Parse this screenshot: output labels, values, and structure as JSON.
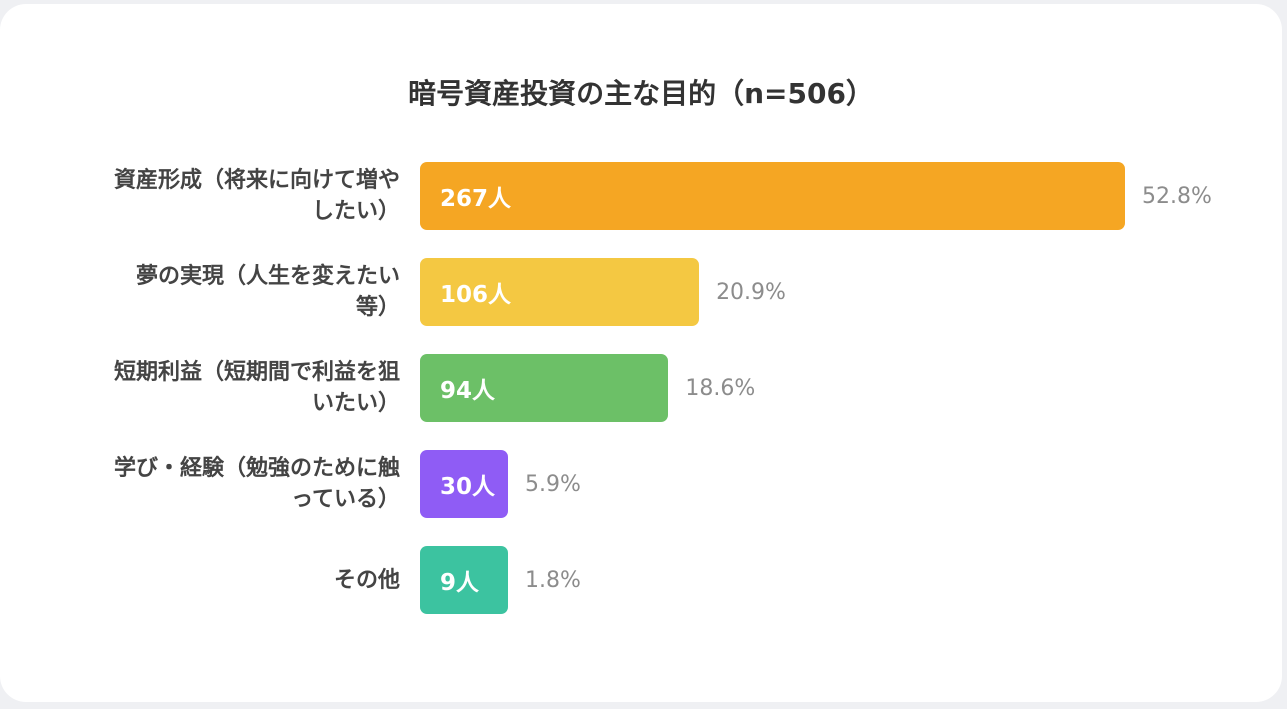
{
  "chart_data": {
    "type": "bar",
    "orientation": "horizontal",
    "title": "暗号資産投資の主な目的（n=506）",
    "categories": [
      "資産形成（将来に向けて増やしたい）",
      "夢の実現（人生を変えたい等）",
      "短期利益（短期間で利益を狙いたい）",
      "学び・経験（勉強のために触っている）",
      "その他"
    ],
    "category_lines": [
      [
        "資産形成（将来に向けて増や",
        "したい）"
      ],
      [
        "夢の実現（人生を変えたい",
        "等）"
      ],
      [
        "短期利益（短期間で利益を狙",
        "いたい）"
      ],
      [
        "学び・経験（勉強のために触",
        "っている）"
      ],
      [
        "その他"
      ]
    ],
    "values": [
      267,
      106,
      94,
      30,
      9
    ],
    "value_labels": [
      "267人",
      "106人",
      "94人",
      "30人",
      "9人"
    ],
    "percent_labels": [
      "52.8%",
      "20.9%",
      "18.6%",
      "5.9%",
      "1.8%"
    ],
    "percents": [
      52.8,
      20.9,
      18.6,
      5.9,
      1.8
    ],
    "colors": [
      "#f5a623",
      "#f4c842",
      "#6cc067",
      "#8f5cf5",
      "#3cc3a0"
    ],
    "grid": false,
    "legend": "none"
  }
}
